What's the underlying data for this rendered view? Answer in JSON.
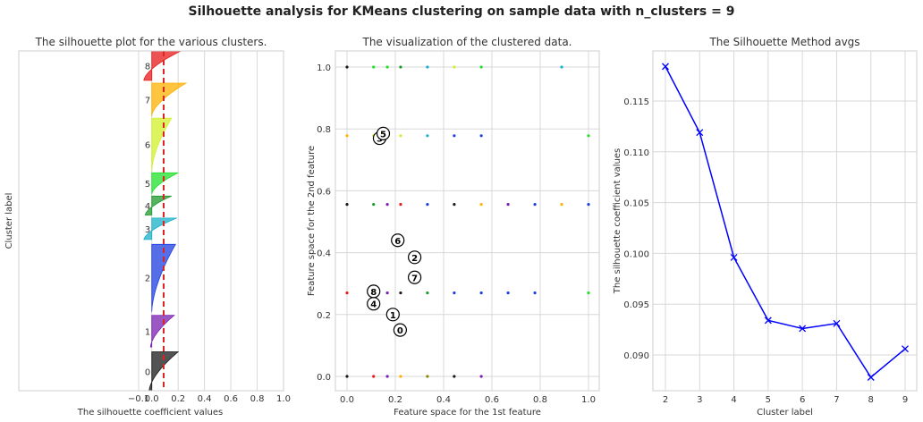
{
  "suptitle": "Silhouette analysis for KMeans clustering on sample data with n_clusters = 9",
  "colors": {
    "grid": "#d8d8d8",
    "axis_text": "#333333",
    "line": "#0000ff",
    "threshold": "#dd2222"
  },
  "chart_data": [
    {
      "type": "area",
      "title": "The silhouette plot for the various clusters.",
      "xlabel": "The silhouette coefficient values",
      "ylabel": "Cluster label",
      "xlim": [
        -0.1,
        1.0
      ],
      "xticks": [
        "−0.1",
        "0.0",
        "0.2",
        "0.4",
        "0.6",
        "0.8",
        "1.0"
      ],
      "average_silhouette": 0.09,
      "clusters": [
        {
          "label": "0",
          "color": "#1a1a1a",
          "start": 0.0,
          "end": 0.152,
          "min": -0.02,
          "max": 0.2
        },
        {
          "label": "1",
          "color": "#7a1fb0",
          "start": 0.171,
          "end": 0.295,
          "min": -0.01,
          "max": 0.17
        },
        {
          "label": "2",
          "color": "#1d3fe0",
          "start": 0.311,
          "end": 0.573,
          "min": 0.0,
          "max": 0.18
        },
        {
          "label": "3",
          "color": "#1ab0c8",
          "start": 0.592,
          "end": 0.676,
          "min": -0.06,
          "max": 0.19
        },
        {
          "label": "4",
          "color": "#1e9a2a",
          "start": 0.688,
          "end": 0.762,
          "min": -0.05,
          "max": 0.15
        },
        {
          "label": "5",
          "color": "#22e02a",
          "start": 0.77,
          "end": 0.853,
          "min": 0.0,
          "max": 0.2
        },
        {
          "label": "6",
          "color": "#d2f02a",
          "start": 0.861,
          "end": 1.067,
          "min": 0.0,
          "max": 0.15
        },
        {
          "label": "7",
          "color": "#ffb000",
          "start": 1.076,
          "end": 1.204,
          "min": 0.0,
          "max": 0.26
        },
        {
          "label": "8",
          "color": "#e81a1a",
          "start": 1.215,
          "end": 1.33,
          "min": -0.06,
          "max": 0.22
        }
      ]
    },
    {
      "type": "scatter",
      "title": "The visualization of the clustered data.",
      "xlabel": "Feature space for the 1st feature",
      "ylabel": "Feature space for the 2nd feature",
      "xlim": [
        -0.04,
        1.04
      ],
      "ylim": [
        -0.05,
        1.05
      ],
      "xticks": [
        "0.0",
        "0.2",
        "0.4",
        "0.6",
        "0.8",
        "1.0"
      ],
      "yticks": [
        "0.0",
        "0.2",
        "0.4",
        "0.6",
        "0.8",
        "1.0"
      ],
      "points": [
        {
          "x": 0.0,
          "y": 0.0,
          "c": "#1a1a1a"
        },
        {
          "x": 0.11,
          "y": 0.0,
          "c": "#e81a1a"
        },
        {
          "x": 0.167,
          "y": 0.0,
          "c": "#7a1fb0"
        },
        {
          "x": 0.222,
          "y": 0.0,
          "c": "#ffb000"
        },
        {
          "x": 0.333,
          "y": 0.0,
          "c": "#888800"
        },
        {
          "x": 0.444,
          "y": 0.0,
          "c": "#1a1a1a"
        },
        {
          "x": 0.556,
          "y": 0.0,
          "c": "#7a1fb0"
        },
        {
          "x": 0.0,
          "y": 0.27,
          "c": "#e81a1a"
        },
        {
          "x": 0.11,
          "y": 0.27,
          "c": "#e81a1a"
        },
        {
          "x": 0.167,
          "y": 0.27,
          "c": "#7a1fb0"
        },
        {
          "x": 0.222,
          "y": 0.27,
          "c": "#1a1a1a"
        },
        {
          "x": 0.333,
          "y": 0.27,
          "c": "#1e9a2a"
        },
        {
          "x": 0.444,
          "y": 0.27,
          "c": "#1d3fe0"
        },
        {
          "x": 0.556,
          "y": 0.27,
          "c": "#1d3fe0"
        },
        {
          "x": 0.667,
          "y": 0.27,
          "c": "#1d3fe0"
        },
        {
          "x": 0.778,
          "y": 0.27,
          "c": "#1d3fe0"
        },
        {
          "x": 1.0,
          "y": 0.27,
          "c": "#22e02a"
        },
        {
          "x": 0.0,
          "y": 0.556,
          "c": "#1a1a1a"
        },
        {
          "x": 0.11,
          "y": 0.556,
          "c": "#1e9a2a"
        },
        {
          "x": 0.167,
          "y": 0.556,
          "c": "#7a1fb0"
        },
        {
          "x": 0.222,
          "y": 0.556,
          "c": "#e81a1a"
        },
        {
          "x": 0.333,
          "y": 0.556,
          "c": "#1d3fe0"
        },
        {
          "x": 0.444,
          "y": 0.556,
          "c": "#1a1a1a"
        },
        {
          "x": 0.556,
          "y": 0.556,
          "c": "#ffb000"
        },
        {
          "x": 0.667,
          "y": 0.556,
          "c": "#7a1fb0"
        },
        {
          "x": 0.778,
          "y": 0.556,
          "c": "#1d3fe0"
        },
        {
          "x": 0.889,
          "y": 0.556,
          "c": "#ffb000"
        },
        {
          "x": 1.0,
          "y": 0.556,
          "c": "#1d3fe0"
        },
        {
          "x": 0.0,
          "y": 0.778,
          "c": "#ffb000"
        },
        {
          "x": 0.11,
          "y": 0.778,
          "c": "#d2f02a"
        },
        {
          "x": 0.222,
          "y": 0.778,
          "c": "#d2f02a"
        },
        {
          "x": 0.333,
          "y": 0.778,
          "c": "#1ab0c8"
        },
        {
          "x": 0.444,
          "y": 0.778,
          "c": "#1d3fe0"
        },
        {
          "x": 0.556,
          "y": 0.778,
          "c": "#1d3fe0"
        },
        {
          "x": 1.0,
          "y": 0.778,
          "c": "#22e02a"
        },
        {
          "x": 0.0,
          "y": 1.0,
          "c": "#1a1a1a"
        },
        {
          "x": 0.11,
          "y": 1.0,
          "c": "#22e02a"
        },
        {
          "x": 0.167,
          "y": 1.0,
          "c": "#22e02a"
        },
        {
          "x": 0.222,
          "y": 1.0,
          "c": "#1e9a2a"
        },
        {
          "x": 0.333,
          "y": 1.0,
          "c": "#1ab0c8"
        },
        {
          "x": 0.444,
          "y": 1.0,
          "c": "#d2f02a"
        },
        {
          "x": 0.556,
          "y": 1.0,
          "c": "#22e02a"
        },
        {
          "x": 0.889,
          "y": 1.0,
          "c": "#1ab0c8"
        }
      ],
      "centers": [
        {
          "label": "0",
          "x": 0.22,
          "y": 0.15
        },
        {
          "label": "1",
          "x": 0.19,
          "y": 0.2
        },
        {
          "label": "2",
          "x": 0.28,
          "y": 0.385
        },
        {
          "label": "3",
          "x": 0.135,
          "y": 0.77
        },
        {
          "label": "4",
          "x": 0.11,
          "y": 0.235
        },
        {
          "label": "5",
          "x": 0.15,
          "y": 0.785
        },
        {
          "label": "6",
          "x": 0.21,
          "y": 0.44
        },
        {
          "label": "7",
          "x": 0.28,
          "y": 0.32
        },
        {
          "label": "8",
          "x": 0.11,
          "y": 0.275
        }
      ]
    },
    {
      "type": "line",
      "title": "The Silhouette Method avgs",
      "xlabel": "Cluster label",
      "ylabel": "The silhouette coefficient values",
      "x": [
        2,
        3,
        4,
        5,
        6,
        7,
        8,
        9
      ],
      "y": [
        0.1184,
        0.1119,
        0.0996,
        0.0934,
        0.0926,
        0.0931,
        0.0878,
        0.0906
      ],
      "xlim": [
        1.75,
        9.25
      ],
      "ylim": [
        0.0865,
        0.1197
      ],
      "xticks": [
        "2",
        "3",
        "4",
        "5",
        "6",
        "7",
        "8",
        "9"
      ],
      "yticks": [
        "0.090",
        "0.095",
        "0.100",
        "0.105",
        "0.110",
        "0.115"
      ]
    }
  ]
}
